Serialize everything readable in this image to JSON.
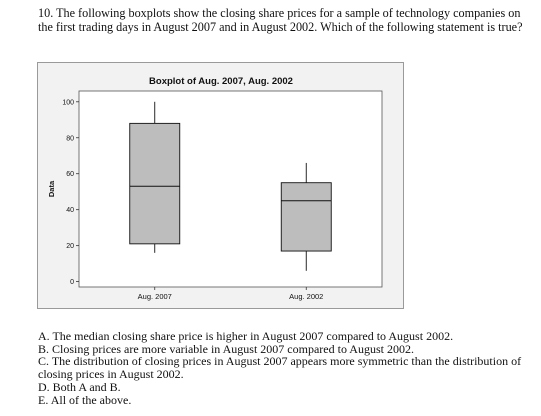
{
  "question": {
    "number": "10.",
    "text": "The following boxplots show the closing share prices for a sample of technology companies on the first trading days in August 2007 and in August 2002.  Which of the following statement is true?"
  },
  "options": [
    {
      "label": "A.",
      "text": "The median closing share price is higher in August 2007 compared to August 2002."
    },
    {
      "label": "B.",
      "text": "Closing prices are more variable in August 2007 compared to August 2002."
    },
    {
      "label": "C.",
      "text": "The distribution of closing prices in August 2007 appears more symmetric than the distribution of closing prices in August 2002."
    },
    {
      "label": "D.",
      "text": "Both A and B."
    },
    {
      "label": "E.",
      "text": "All of the above."
    }
  ],
  "chart_data": {
    "type": "boxplot",
    "title": "Boxplot of Aug. 2007, Aug. 2002",
    "ylabel": "Data",
    "xlabel": "",
    "ylim": [
      -3,
      106
    ],
    "yticks": [
      0,
      20,
      40,
      60,
      80,
      100
    ],
    "grid": false,
    "categories": [
      "Aug. 2007",
      "Aug. 2002"
    ],
    "boxes": [
      {
        "category": "Aug. 2007",
        "min": 16,
        "q1": 21,
        "median": 53,
        "q3": 88,
        "max": 100
      },
      {
        "category": "Aug. 2002",
        "min": 6,
        "q1": 17,
        "median": 45,
        "q3": 55,
        "max": 66
      }
    ],
    "colors": {
      "box_fill": "#bdbdbd",
      "line": "#111111",
      "panel_bg": "#ffffff",
      "outer_bg": "#f2f2f2"
    }
  }
}
